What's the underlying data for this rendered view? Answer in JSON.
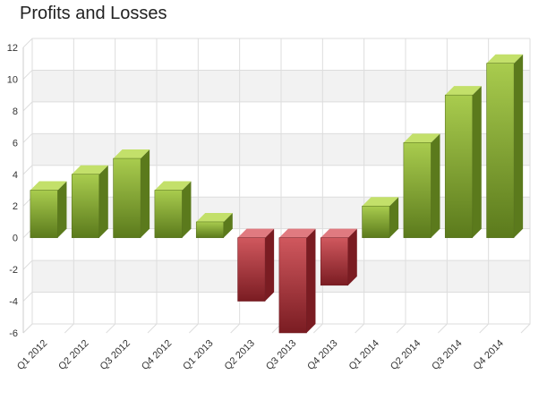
{
  "chart_data": {
    "type": "bar",
    "title": "Profits and Losses",
    "xlabel": "",
    "ylabel": "",
    "categories": [
      "Q1 2012",
      "Q2 2012",
      "Q3 2012",
      "Q4 2012",
      "Q1 2013",
      "Q2 2013",
      "Q3 2013",
      "Q4 2013",
      "Q1 2014",
      "Q2 2014",
      "Q3 2014",
      "Q4 2014"
    ],
    "values": [
      3,
      4,
      5,
      3,
      1,
      -4,
      -6,
      -3,
      2,
      6,
      9,
      11
    ],
    "ylim": [
      -6,
      12
    ],
    "yticks": [
      -6,
      -4,
      -2,
      0,
      2,
      4,
      6,
      8,
      10,
      12
    ],
    "grid": true,
    "legend": "none",
    "colors": {
      "positive_light": "#a9cc4e",
      "positive_dark": "#5b7a1c",
      "positive_top": "#c3e06a",
      "negative_light": "#d0585e",
      "negative_dark": "#7a1c22",
      "negative_top": "#e07a80",
      "band": "#f2f2f2",
      "grid": "#dddddd"
    }
  }
}
